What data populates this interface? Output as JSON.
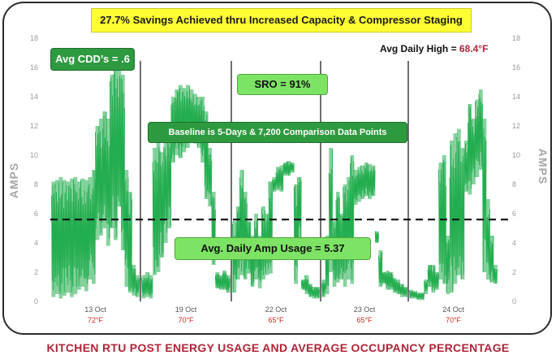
{
  "title_banner": "27.7% Savings Achieved thru Increased Capacity & Compressor Staging",
  "callouts": {
    "cdd": "Avg CDD’s = .6",
    "sro": "SRO = 91%",
    "baseline": "Baseline is 5-Days & 7,200 Comparison Data Points",
    "avg_amp": "Avg. Daily Amp Usage = 5.37",
    "avg_high_label": "Avg Daily High = ",
    "avg_high_value": "68.4°F"
  },
  "footer_title": "KITCHEN RTU POST ENERGY USAGE AND AVERAGE OCCUPANCY PERCENTAGE",
  "colors": {
    "series": "#22ad4e",
    "title_banner_bg": "#ffff33",
    "dark_callout": "#2e9a40",
    "light_callout": "#7de364",
    "temperature_text": "#cc2a1c",
    "footer_text": "#b02436"
  },
  "chart_data": {
    "type": "line",
    "ylabel_left": "AMPS",
    "ylabel_right": "AMPS",
    "ylim": [
      0,
      18
    ],
    "yticks": [
      0,
      2,
      4,
      6,
      8,
      10,
      12,
      14,
      16,
      18
    ],
    "grid": false,
    "average_line": 5.6,
    "days": [
      {
        "label": "13 Oct",
        "temp": "72°F"
      },
      {
        "label": "19 Oct",
        "temp": "70°F"
      },
      {
        "label": "22 Oct",
        "temp": "65°F"
      },
      {
        "label": "23 Oct",
        "temp": "65°F"
      },
      {
        "label": "24 Oct",
        "temp": "70°F"
      }
    ],
    "series": [
      {
        "points_per_day": 24,
        "low": [
          0.3,
          0.5,
          0.2,
          0.4,
          0.6,
          0.3,
          0.5,
          0.8,
          1.0,
          0.7,
          1.5,
          1.2,
          4.2,
          4.5,
          5.0,
          3.8,
          5.0,
          4.2,
          6.5,
          3.5,
          1.0,
          0.6,
          0.4,
          0.3,
          0.2,
          0.3,
          0.2,
          1.8,
          2.0,
          3.0,
          4.0,
          5.0,
          9.5,
          10.0,
          9.8,
          10.2,
          10.5,
          11.0,
          10.8,
          10.5,
          9.5,
          7.0,
          6.5,
          2.5,
          0.9,
          0.8,
          0.8,
          0.6,
          0.6,
          1.5,
          1.8,
          1.5,
          1.9,
          1.0,
          1.5,
          0.9,
          1.5,
          1.8,
          1.9,
          7.5,
          7.6,
          7.5,
          8.6,
          8.6,
          8.8,
          1.2,
          4.0,
          0.8,
          0.5,
          0.3,
          0.2,
          0.2,
          0.3,
          0.5,
          2.0,
          1.0,
          1.3,
          1.5,
          1.0,
          1.5,
          1.2,
          6.6,
          6.8,
          7.0,
          7.2,
          7.0,
          7.2,
          4.0,
          1.0,
          1.2,
          0.8,
          0.8,
          0.6,
          0.5,
          0.3,
          0.3,
          0.2,
          0.2,
          0.1,
          0.1,
          0.5,
          1.0,
          0.6,
          0.8,
          1.5,
          1.2,
          0.5,
          0.6,
          1.2,
          1.8,
          1.5,
          7.5,
          7.3,
          8.0,
          8.5,
          9.0,
          2.0,
          1.5,
          1.3,
          1.2
        ],
        "high": [
          8.2,
          8.3,
          8.5,
          8.3,
          8.2,
          8.4,
          8.5,
          8.2,
          8.4,
          8.3,
          8.5,
          9.0,
          12.0,
          12.5,
          13.0,
          12.5,
          15.5,
          16.0,
          15.8,
          15.5,
          9.0,
          7.5,
          2.5,
          1.8,
          1.8,
          2.0,
          1.8,
          10.5,
          11.0,
          10.2,
          11.0,
          11.5,
          14.0,
          14.5,
          14.8,
          14.6,
          14.8,
          14.5,
          14.2,
          14.0,
          14.0,
          13.0,
          10.5,
          7.5,
          2.0,
          1.8,
          2.1,
          1.8,
          5.5,
          6.5,
          9.0,
          7.5,
          5.5,
          4.5,
          6.0,
          4.5,
          6.5,
          6.0,
          8.2,
          8.5,
          9.2,
          9.3,
          9.5,
          9.6,
          9.5,
          8.0,
          8.5,
          1.5,
          1.8,
          1.2,
          1.0,
          1.0,
          1.5,
          4.5,
          10.5,
          5.5,
          7.5,
          6.0,
          8.0,
          8.5,
          10.0,
          9.0,
          9.2,
          9.3,
          9.5,
          9.4,
          9.3,
          4.8,
          3.5,
          2.0,
          2.1,
          2.0,
          1.6,
          1.5,
          1.2,
          1.0,
          0.8,
          0.7,
          0.6,
          0.6,
          1.5,
          2.5,
          2.5,
          2.0,
          9.5,
          10.0,
          4.5,
          11.0,
          11.5,
          11.8,
          10.5,
          11.0,
          13.5,
          12.5,
          13.8,
          14.5,
          12.5,
          7.0,
          4.5,
          2.5
        ]
      }
    ]
  }
}
